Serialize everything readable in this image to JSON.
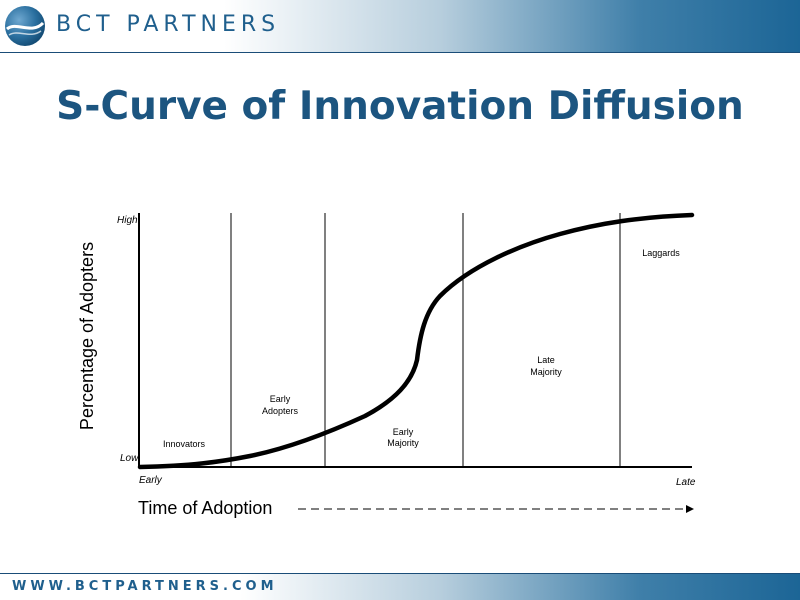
{
  "header": {
    "brand": "BCT PARTNERS"
  },
  "slide": {
    "title": "S-Curve of Innovation Diffusion"
  },
  "diagram": {
    "y_axis_label": "Percentage of Adopters",
    "y_high_label": "High",
    "y_low_label": "Low",
    "x_axis_label": "Time of Adoption",
    "x_early_label": "Early",
    "x_late_label": "Late",
    "segments": [
      {
        "line1": "Innovators",
        "line2": ""
      },
      {
        "line1": "Early",
        "line2": "Adopters"
      },
      {
        "line1": "Early",
        "line2": "Majority"
      },
      {
        "line1": "Late",
        "line2": "Majority"
      },
      {
        "line1": "Laggards",
        "line2": ""
      }
    ]
  },
  "footer": {
    "url": "WWW.BCTPARTNERS.COM"
  },
  "colors": {
    "brand_blue": "#1f5f8d",
    "title_blue": "#1c5580",
    "curve": "#000000"
  }
}
